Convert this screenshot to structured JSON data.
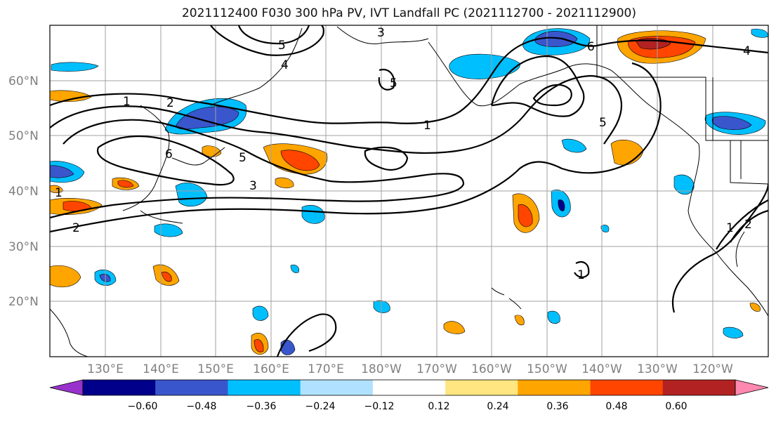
{
  "title": "2021112400 F030 300 hPa PV, IVT Landfall PC (2021112700 - 2021112900)",
  "lat_labels": [
    "60°N",
    "50°N",
    "40°N",
    "30°N",
    "20°N"
  ],
  "lon_labels": [
    "130°E",
    "140°E",
    "150°E",
    "160°E",
    "170°E",
    "180°W",
    "170°W",
    "160°W",
    "150°W",
    "140°W",
    "130°W",
    "120°W"
  ],
  "contour_labels": [
    "1",
    "2",
    "3",
    "5",
    "6",
    "4",
    "5",
    "3",
    "2",
    "1",
    "5",
    "6",
    "4",
    "5",
    "1",
    "1",
    "2",
    "1"
  ],
  "colorbar": {
    "ticks": [
      "−0.60",
      "−0.48",
      "−0.36",
      "−0.24",
      "−0.12",
      "0.12",
      "0.24",
      "0.36",
      "0.48",
      "0.60"
    ],
    "colors": [
      "#9932cc",
      "#00008b",
      "#3a56cc",
      "#00bfff",
      "#b0e2ff",
      "#ffffff",
      "#ffe680",
      "#ffa500",
      "#ff4500",
      "#b22222",
      "#ff88b0"
    ]
  }
}
